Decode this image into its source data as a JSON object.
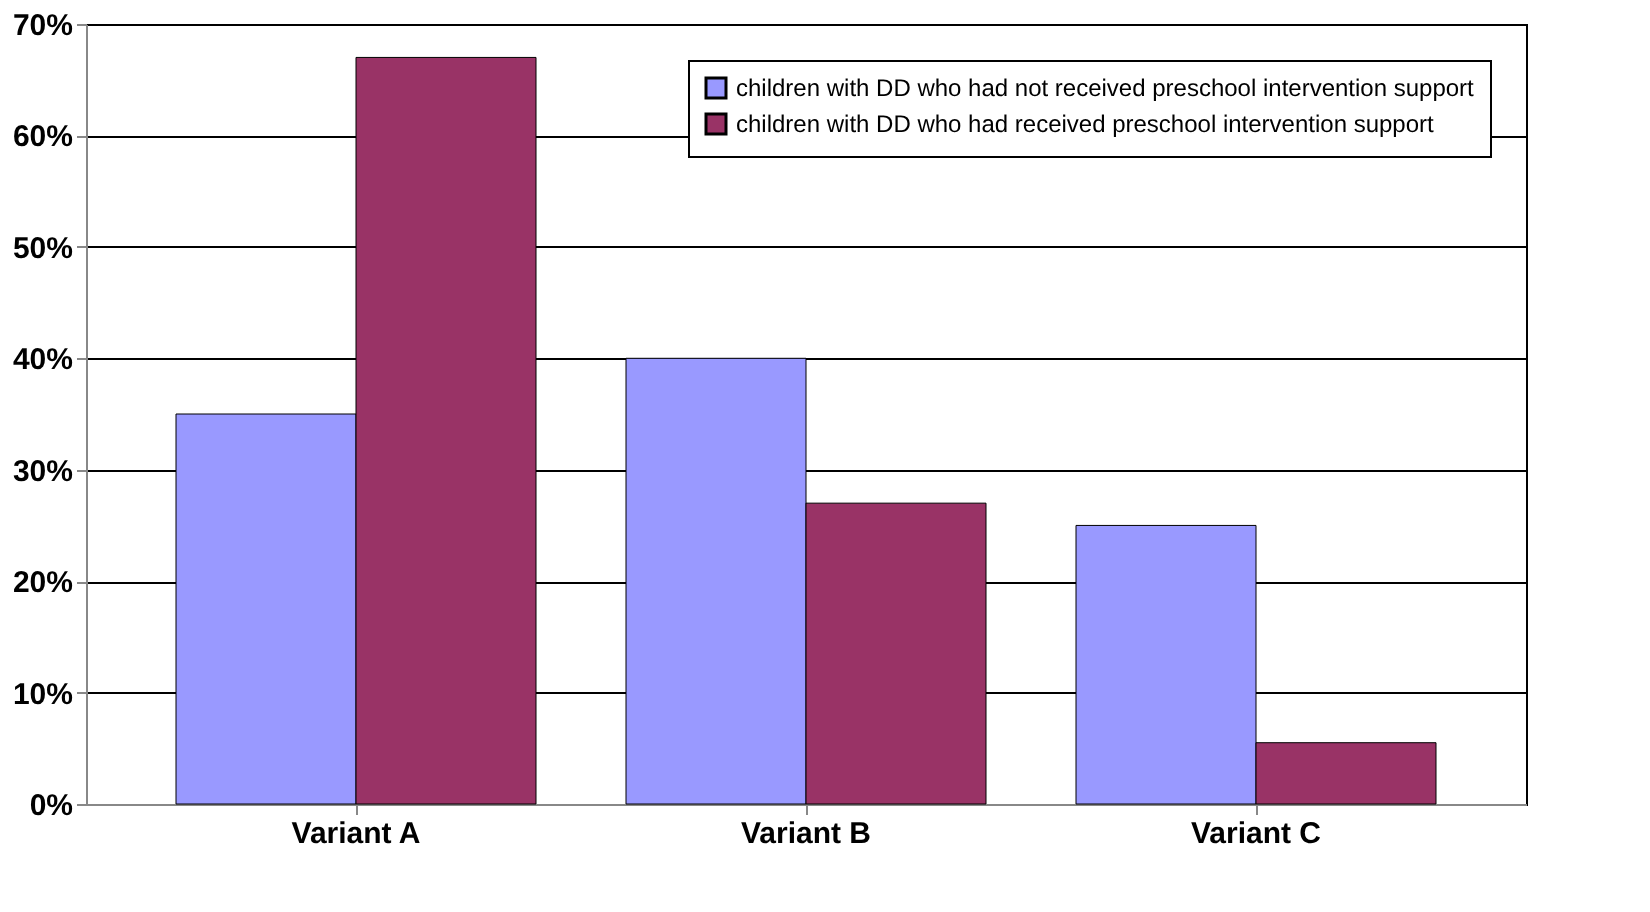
{
  "chart_data": {
    "type": "bar",
    "categories": [
      "Variant A",
      "Variant B",
      "Variant C"
    ],
    "series": [
      {
        "name": "children with DD who had not received preschool intervention support",
        "color": "#9999ff",
        "values": [
          35,
          40,
          25
        ]
      },
      {
        "name": "children with DD who had received preschool intervention support",
        "color": "#993366",
        "values": [
          67,
          27,
          5.5
        ]
      }
    ],
    "ylim": [
      0,
      70
    ],
    "yticks": [
      {
        "value": 0,
        "label": "0%"
      },
      {
        "value": 10,
        "label": "10%"
      },
      {
        "value": 20,
        "label": "20%"
      },
      {
        "value": 30,
        "label": "30%"
      },
      {
        "value": 40,
        "label": "40%"
      },
      {
        "value": 50,
        "label": "50%"
      },
      {
        "value": 60,
        "label": "60%"
      },
      {
        "value": 70,
        "label": "70%"
      }
    ],
    "grid": "y",
    "legend": "top right"
  }
}
